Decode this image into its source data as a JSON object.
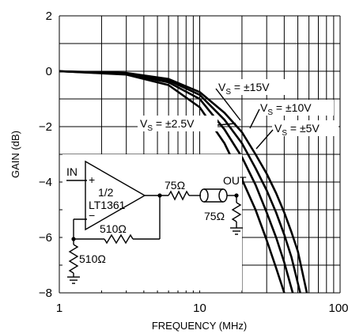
{
  "chart_data": {
    "type": "line",
    "x_scale": "log",
    "xlim": [
      1,
      100
    ],
    "ylim": [
      -8,
      2
    ],
    "xlabel": "FREQUENCY (MHz)",
    "ylabel": "GAIN (dB)",
    "x_tick_labels": [
      "1",
      "10",
      "100"
    ],
    "y_tick_labels": [
      "2",
      "0",
      "−2",
      "−4",
      "−6",
      "−8"
    ],
    "grid": true,
    "series": [
      {
        "name": "VS = ±2.5V",
        "x": [
          1,
          3,
          6,
          10,
          15,
          20,
          25,
          30,
          35,
          40
        ],
        "y": [
          0,
          -0.12,
          -0.5,
          -1.3,
          -2.6,
          -3.9,
          -5.0,
          -6.1,
          -7.1,
          -8.0
        ]
      },
      {
        "name": "VS = ±5V",
        "x": [
          1,
          3,
          6,
          10,
          15,
          20,
          25,
          30,
          35,
          40,
          46
        ],
        "y": [
          0,
          -0.1,
          -0.4,
          -1.0,
          -2.1,
          -3.1,
          -4.1,
          -5.1,
          -6.0,
          -6.9,
          -8.0
        ]
      },
      {
        "name": "VS = ±10V",
        "x": [
          1,
          3,
          6,
          10,
          15,
          20,
          25,
          30,
          35,
          40,
          45,
          52
        ],
        "y": [
          0,
          -0.08,
          -0.33,
          -0.85,
          -1.75,
          -2.6,
          -3.5,
          -4.3,
          -5.1,
          -5.9,
          -6.7,
          -8.0
        ]
      },
      {
        "name": "VS = ±15V",
        "x": [
          1,
          3,
          6,
          10,
          15,
          20,
          25,
          30,
          35,
          40,
          45,
          50,
          58
        ],
        "y": [
          0,
          -0.06,
          -0.28,
          -0.75,
          -1.5,
          -2.2,
          -3.0,
          -3.7,
          -4.4,
          -5.1,
          -5.8,
          -6.5,
          -8.0
        ]
      }
    ]
  },
  "annotations": {
    "vs15": {
      "pre": "V",
      "sub": "S",
      "post": " = ±15V"
    },
    "vs10": {
      "pre": "V",
      "sub": "S",
      "post": " = ±10V"
    },
    "vs25": {
      "pre": "V",
      "sub": "S",
      "post": " = ±2.5V"
    },
    "vs5": {
      "pre": "V",
      "sub": "S",
      "post": " = ±5V"
    }
  },
  "schematic": {
    "in_label": "IN",
    "out_label": "OUT",
    "plus": "+",
    "minus": "−",
    "amp_fraction": "1/2",
    "amp_name": "LT1361",
    "r_series": "75Ω",
    "r_load": "75Ω",
    "r_feedback": "510Ω",
    "r_ground": "510Ω"
  }
}
